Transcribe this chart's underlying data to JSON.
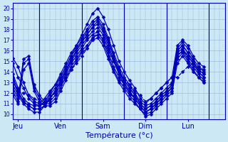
{
  "background_color": "#cce8f4",
  "grid_color": "#99bbdd",
  "line_color": "#0000bb",
  "marker": "D",
  "markersize": 2.5,
  "linewidth": 0.9,
  "xlabel": "Température (°c)",
  "xlabel_fontsize": 8,
  "yticks": [
    10,
    11,
    12,
    13,
    14,
    15,
    16,
    17,
    18,
    19,
    20
  ],
  "ylim": [
    9.5,
    20.5
  ],
  "day_labels": [
    "Jeu",
    "Ven",
    "Sam",
    "Dim",
    "Lun"
  ],
  "day_positions": [
    12,
    60,
    108,
    156,
    204
  ],
  "day_separators": [
    36,
    84,
    132,
    180,
    228
  ],
  "xlim": [
    6,
    246
  ],
  "x_step": 6,
  "series": [
    [
      15.3,
      14.5,
      13.0,
      11.8,
      11.2,
      11.0,
      11.5,
      12.2,
      12.8,
      13.5,
      14.5,
      15.5,
      16.5,
      17.5,
      18.5,
      19.5,
      20.0,
      19.2,
      18.0,
      16.5,
      15.0,
      14.0,
      13.2,
      12.5,
      11.5,
      11.0,
      11.5,
      12.0,
      12.5,
      13.0,
      13.5,
      16.5,
      17.0,
      16.5,
      15.5,
      14.8,
      14.5
    ],
    [
      14.8,
      13.5,
      12.5,
      11.5,
      11.0,
      10.8,
      11.2,
      12.0,
      12.8,
      13.8,
      14.8,
      15.8,
      16.5,
      17.2,
      18.0,
      18.8,
      19.2,
      18.5,
      17.2,
      15.8,
      14.5,
      13.5,
      12.8,
      12.0,
      11.2,
      10.8,
      11.0,
      11.5,
      12.0,
      12.5,
      13.0,
      16.2,
      16.8,
      16.2,
      15.2,
      14.5,
      14.0
    ],
    [
      13.8,
      12.5,
      11.5,
      11.0,
      10.8,
      10.8,
      11.0,
      11.8,
      12.5,
      13.5,
      14.5,
      15.5,
      16.2,
      17.0,
      17.8,
      18.5,
      19.0,
      18.2,
      17.0,
      15.5,
      14.2,
      13.2,
      12.5,
      11.8,
      11.0,
      10.5,
      10.8,
      11.2,
      11.8,
      12.2,
      12.8,
      16.0,
      16.5,
      15.8,
      15.0,
      14.2,
      13.8
    ],
    [
      13.2,
      12.0,
      11.2,
      10.8,
      10.5,
      10.5,
      10.8,
      11.5,
      12.2,
      13.2,
      14.2,
      15.2,
      16.0,
      16.8,
      17.5,
      18.2,
      18.5,
      17.8,
      16.5,
      15.2,
      14.0,
      13.0,
      12.2,
      11.5,
      10.8,
      10.2,
      10.5,
      11.0,
      11.5,
      12.0,
      12.5,
      15.8,
      16.2,
      15.5,
      14.8,
      14.0,
      13.5
    ],
    [
      13.5,
      12.2,
      11.2,
      10.8,
      10.5,
      10.5,
      10.8,
      11.5,
      12.2,
      13.2,
      14.2,
      15.2,
      16.0,
      16.8,
      17.5,
      18.2,
      18.8,
      18.0,
      16.8,
      15.5,
      14.2,
      13.2,
      12.5,
      11.8,
      11.0,
      10.5,
      10.8,
      11.2,
      11.8,
      12.2,
      12.8,
      16.0,
      16.5,
      15.8,
      15.0,
      14.2,
      13.8
    ],
    [
      12.8,
      11.8,
      11.0,
      10.5,
      10.2,
      10.2,
      10.8,
      11.5,
      12.2,
      13.0,
      14.0,
      15.0,
      15.8,
      16.5,
      17.2,
      17.8,
      18.2,
      17.5,
      16.2,
      15.0,
      13.8,
      12.8,
      12.0,
      11.5,
      10.8,
      10.2,
      10.5,
      11.0,
      11.5,
      12.0,
      12.5,
      15.5,
      16.0,
      15.5,
      14.8,
      14.0,
      13.5
    ],
    [
      12.5,
      11.5,
      15.2,
      15.5,
      12.8,
      11.8,
      11.2,
      11.2,
      11.8,
      12.8,
      13.8,
      14.8,
      15.5,
      16.2,
      17.0,
      17.5,
      17.8,
      17.0,
      15.8,
      14.5,
      13.5,
      12.8,
      12.0,
      11.5,
      10.8,
      10.2,
      10.5,
      11.0,
      11.5,
      12.0,
      12.5,
      15.5,
      16.0,
      15.2,
      14.5,
      13.8,
      13.2
    ],
    [
      12.2,
      11.2,
      14.8,
      15.2,
      12.5,
      11.5,
      11.0,
      11.0,
      11.5,
      12.5,
      13.5,
      14.5,
      15.2,
      16.0,
      16.5,
      17.2,
      17.5,
      16.8,
      15.5,
      14.2,
      13.2,
      12.5,
      11.8,
      11.2,
      10.5,
      10.0,
      10.2,
      10.8,
      11.2,
      11.8,
      12.2,
      15.2,
      15.8,
      15.0,
      14.2,
      13.5,
      13.0
    ],
    [
      11.8,
      11.0,
      14.2,
      14.8,
      12.2,
      11.2,
      10.8,
      10.8,
      11.2,
      12.2,
      13.2,
      14.2,
      15.0,
      15.8,
      16.2,
      17.0,
      17.2,
      16.5,
      15.2,
      14.0,
      13.0,
      12.2,
      11.5,
      11.0,
      10.5,
      9.8,
      10.0,
      10.5,
      11.0,
      11.5,
      12.0,
      14.8,
      15.5,
      14.8,
      14.0,
      13.5,
      13.0
    ],
    [
      13.0,
      12.2,
      12.0,
      11.8,
      11.5,
      11.2,
      11.0,
      11.5,
      12.0,
      12.8,
      13.5,
      14.2,
      14.8,
      15.5,
      16.2,
      17.0,
      17.8,
      17.2,
      16.0,
      15.0,
      14.0,
      13.2,
      12.8,
      12.2,
      11.8,
      11.2,
      11.5,
      12.0,
      12.5,
      13.0,
      13.5,
      13.5,
      14.0,
      14.5,
      14.8,
      14.5,
      14.2
    ]
  ],
  "dashed_series_indices": [
    9
  ]
}
